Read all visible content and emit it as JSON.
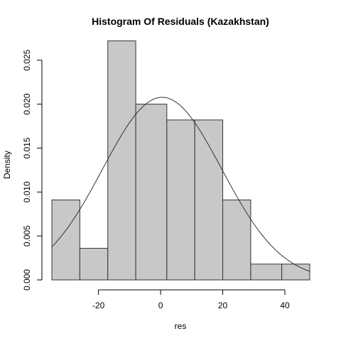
{
  "chart_data": {
    "type": "bar",
    "title": "Histogram Of Residuals (Kazakhstan)",
    "xlabel": "res",
    "ylabel": "Density",
    "xlim": [
      -35,
      48
    ],
    "ylim": [
      0,
      0.027
    ],
    "x_ticks": [
      -20,
      0,
      20,
      40
    ],
    "x_tick_labels": [
      "-20",
      "0",
      "20",
      "40"
    ],
    "y_ticks": [
      0.0,
      0.005,
      0.01,
      0.015,
      0.02,
      0.025
    ],
    "y_tick_labels": [
      "0.000",
      "0.005",
      "0.010",
      "0.015",
      "0.020",
      "0.025"
    ],
    "bins": [
      {
        "x0": -35,
        "x1": -26,
        "density": 0.0091
      },
      {
        "x0": -26,
        "x1": -17,
        "density": 0.0036
      },
      {
        "x0": -17,
        "x1": -8,
        "density": 0.0272
      },
      {
        "x0": -8,
        "x1": 2,
        "density": 0.02
      },
      {
        "x0": 2,
        "x1": 11,
        "density": 0.0182
      },
      {
        "x0": 11,
        "x1": 20,
        "density": 0.0182
      },
      {
        "x0": 20,
        "x1": 29,
        "density": 0.0091
      },
      {
        "x0": 29,
        "x1": 39,
        "density": 0.0018
      },
      {
        "x0": 39,
        "x1": 48,
        "density": 0.0018
      }
    ],
    "normal_curve": {
      "mean": 0.5,
      "sd": 19.2
    },
    "grid": false,
    "colors": {
      "bar_fill": "#c8c8c8",
      "bar_stroke": "#333333",
      "curve": "#333333"
    }
  }
}
